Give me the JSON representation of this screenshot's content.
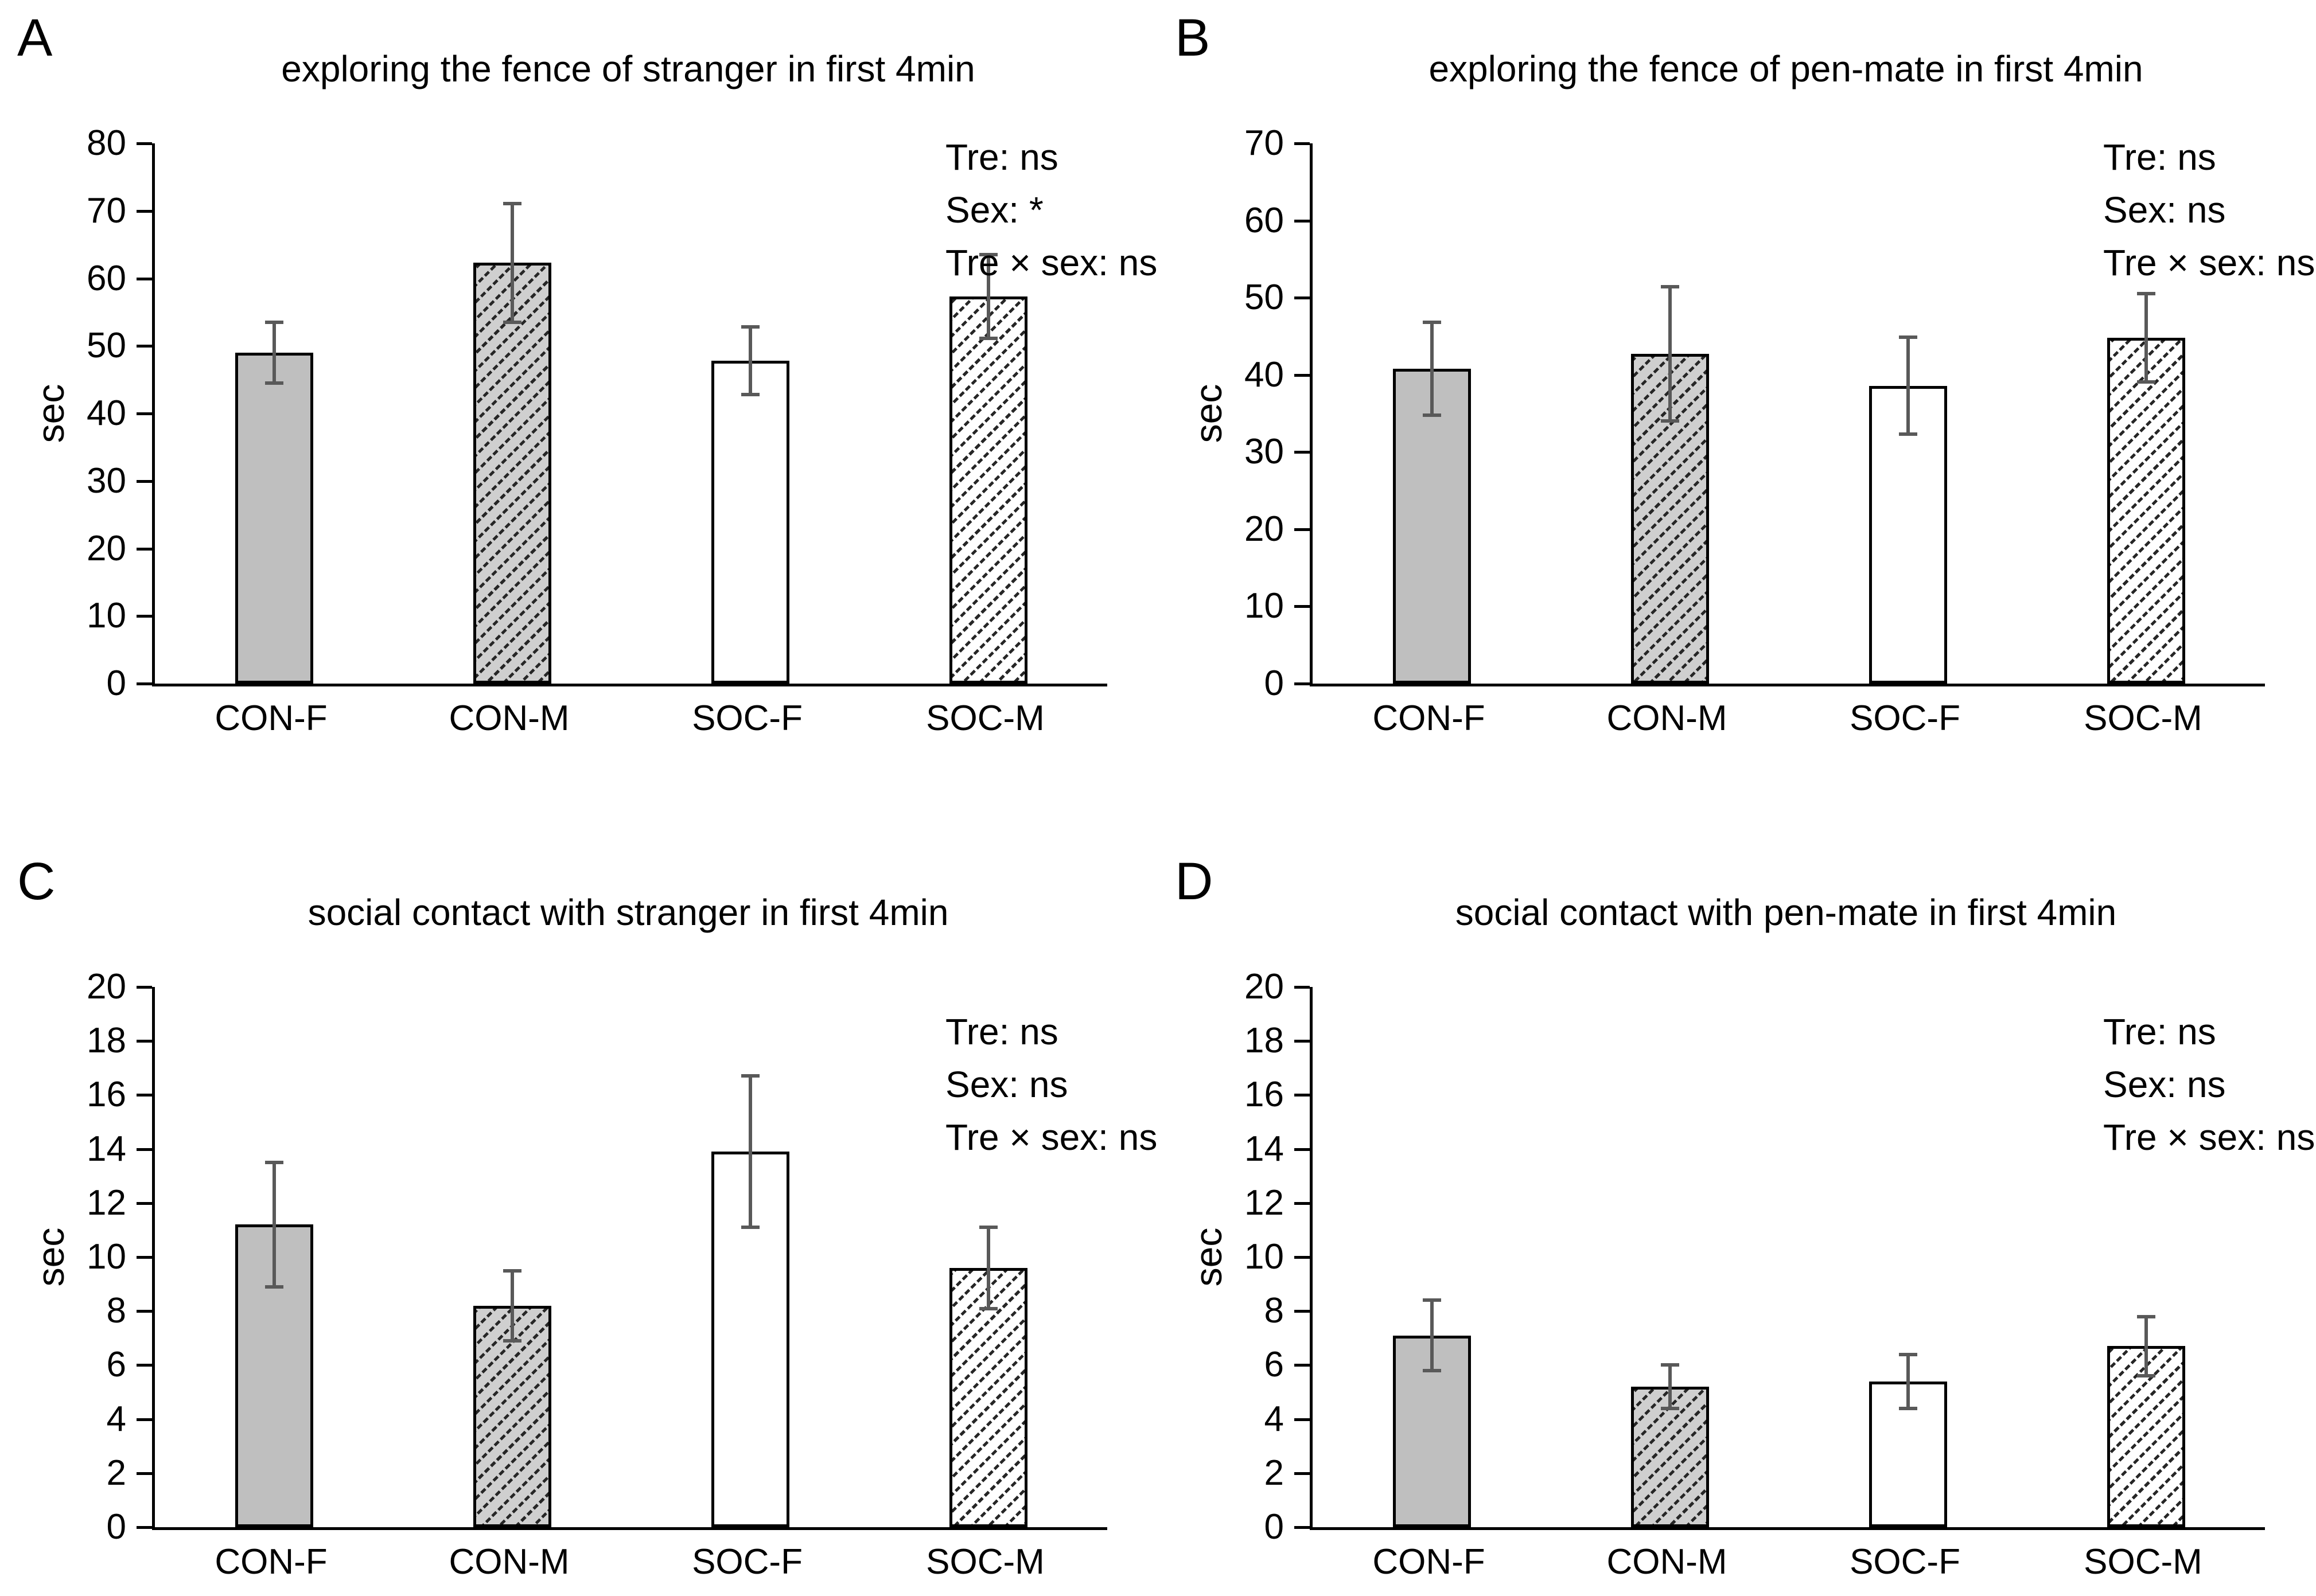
{
  "styles": {
    "background": "#ffffff",
    "text_color": "#000000",
    "axis_color": "#000000",
    "bar_border": "#000000",
    "solid_gray": "#bfbfbf",
    "hatch_gray_bg": "#cfcfcf",
    "hatch_dark": "#262626",
    "white": "#ffffff",
    "error_bar": "#595959",
    "fills": [
      "solid-gray",
      "hatch-gray",
      "solid-white",
      "hatch-white"
    ]
  },
  "chart_data": [
    {
      "type": "bar",
      "letter": "A",
      "title": "exploring the fence of stranger in first 4min",
      "ylabel": "sec",
      "ylim": [
        0,
        80
      ],
      "yticks": [
        0,
        10,
        20,
        30,
        40,
        50,
        60,
        70,
        80
      ],
      "categories": [
        "CON-F",
        "CON-M",
        "SOC-F",
        "SOC-M"
      ],
      "values": [
        49.0,
        62.3,
        47.8,
        57.3
      ],
      "errors": [
        4.5,
        8.8,
        5.0,
        6.2
      ],
      "annotations": [
        "Tre: ns",
        "Sex: *",
        "Tre × sex: ns"
      ],
      "grid": false,
      "legend": "none"
    },
    {
      "type": "bar",
      "letter": "B",
      "title": "exploring the fence of pen-mate in first 4min",
      "ylabel": "sec",
      "ylim": [
        0,
        70
      ],
      "yticks": [
        0,
        10,
        20,
        30,
        40,
        50,
        60,
        70
      ],
      "categories": [
        "CON-F",
        "CON-M",
        "SOC-F",
        "SOC-M"
      ],
      "values": [
        40.8,
        42.7,
        38.6,
        44.8
      ],
      "errors": [
        6.0,
        8.7,
        6.3,
        5.7
      ],
      "annotations": [
        "Tre: ns",
        "Sex: ns",
        "Tre × sex: ns"
      ],
      "grid": false,
      "legend": "none"
    },
    {
      "type": "bar",
      "letter": "C",
      "title": "social contact with stranger in first 4min",
      "ylabel": "sec",
      "ylim": [
        0,
        20
      ],
      "yticks": [
        0,
        2,
        4,
        6,
        8,
        10,
        12,
        14,
        16,
        18,
        20
      ],
      "categories": [
        "CON-F",
        "CON-M",
        "SOC-F",
        "SOC-M"
      ],
      "values": [
        11.2,
        8.2,
        13.9,
        9.6
      ],
      "errors": [
        2.3,
        1.3,
        2.8,
        1.5
      ],
      "annotations": [
        "Tre: ns",
        "Sex: ns",
        "Tre × sex: ns"
      ],
      "grid": false,
      "legend": "none"
    },
    {
      "type": "bar",
      "letter": "D",
      "title": "social contact with pen-mate in first 4min",
      "ylabel": "sec",
      "ylim": [
        0,
        20
      ],
      "yticks": [
        0,
        2,
        4,
        6,
        8,
        10,
        12,
        14,
        16,
        18,
        20
      ],
      "categories": [
        "CON-F",
        "CON-M",
        "SOC-F",
        "SOC-M"
      ],
      "values": [
        7.1,
        5.2,
        5.4,
        6.7
      ],
      "errors": [
        1.3,
        0.8,
        1.0,
        1.1
      ],
      "annotations": [
        "Tre: ns",
        "Sex: ns",
        "Tre × sex: ns"
      ],
      "grid": false,
      "legend": "none"
    }
  ]
}
